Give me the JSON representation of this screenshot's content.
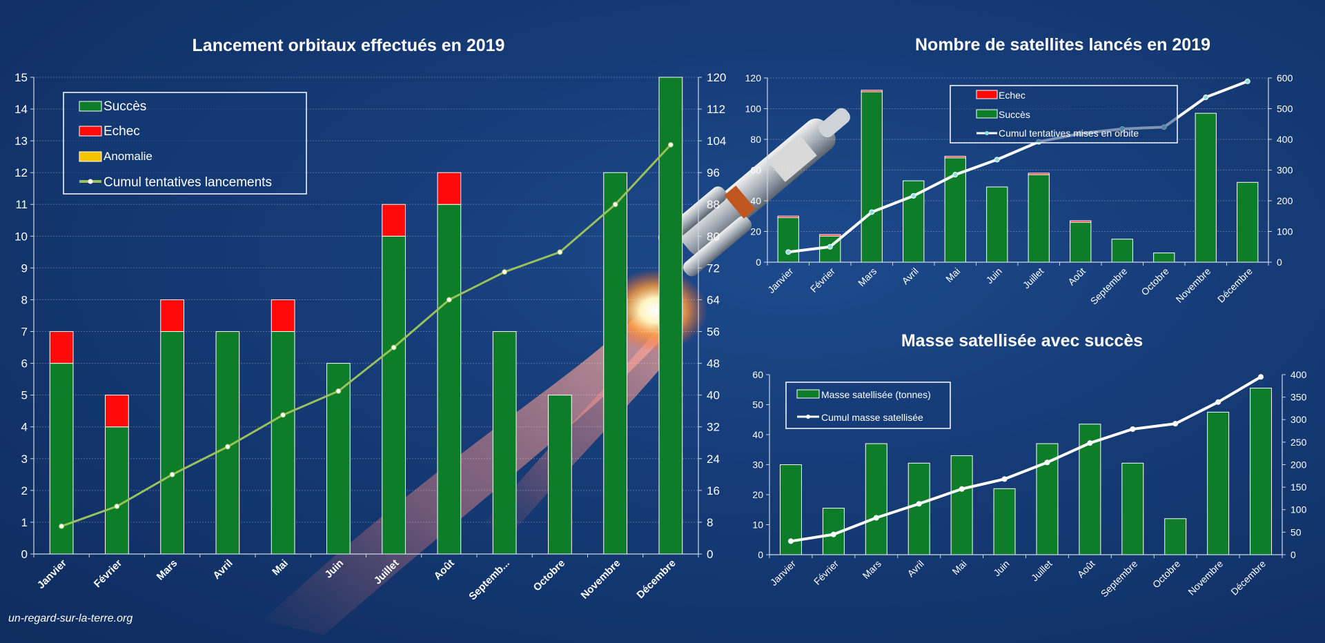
{
  "credit": "un-regard-sur-la-terre.org",
  "chart_data": [
    {
      "type": "bar",
      "title": "Lancement orbitaux effectués en 2019",
      "categories": [
        "Janvier",
        "Février",
        "Mars",
        "Avril",
        "Mai",
        "Juin",
        "Juillet",
        "Août",
        "Septemb...",
        "Octobre",
        "Novembre",
        "Décembre"
      ],
      "ylim": [
        0,
        15
      ],
      "y2lim": [
        0,
        120
      ],
      "yticks": [
        "0",
        "1",
        "2",
        "3",
        "4",
        "5",
        "6",
        "7",
        "8",
        "9",
        "10",
        "11",
        "12",
        "13",
        "14",
        "15"
      ],
      "y2ticks": [
        "0",
        "8",
        "16",
        "24",
        "32",
        "40",
        "48",
        "56",
        "64",
        "72",
        "80",
        "88",
        "96",
        "104",
        "112",
        "120"
      ],
      "series": [
        {
          "name": "Succès",
          "color": "#0e7d2a",
          "values": [
            6,
            4,
            7,
            7,
            7,
            6,
            10,
            11,
            7,
            5,
            12,
            15
          ]
        },
        {
          "name": "Echec",
          "color": "#ff0a0a",
          "values": [
            1,
            1,
            1,
            0,
            1,
            0,
            1,
            1,
            0,
            0,
            0,
            0
          ]
        },
        {
          "name": "Anomalie",
          "color": "#f5c400",
          "values": [
            0,
            0,
            0,
            0,
            0,
            0,
            0,
            0,
            0,
            0,
            0,
            0
          ]
        },
        {
          "name": "Cumul tentatives lancements",
          "color": "#9ac25a",
          "axis": "right",
          "values": [
            7,
            12,
            20,
            27,
            35,
            41,
            52,
            64,
            71,
            76,
            88,
            103
          ]
        }
      ],
      "legend": "top-left",
      "grid": true
    },
    {
      "type": "bar",
      "title": "Nombre de satellites lancés en 2019",
      "categories": [
        "Janvier",
        "Février",
        "Mars",
        "Avril",
        "Mai",
        "Juin",
        "Juillet",
        "Août",
        "Septembre",
        "Octobre",
        "Novembre",
        "Décembre"
      ],
      "ylim": [
        0,
        120
      ],
      "y2lim": [
        0,
        600
      ],
      "yticks": [
        "0",
        "20",
        "40",
        "60",
        "80",
        "100",
        "120"
      ],
      "y2ticks": [
        "0",
        "100",
        "200",
        "300",
        "400",
        "500",
        "600"
      ],
      "series": [
        {
          "name": "Echec",
          "color": "#ff0a0a",
          "values": [
            1,
            1,
            1,
            0,
            1,
            0,
            1,
            1,
            0,
            0,
            0,
            0
          ]
        },
        {
          "name": "Succès",
          "color": "#0e7d2a",
          "values": [
            29,
            17,
            111,
            53,
            68,
            49,
            57,
            26,
            15,
            6,
            97,
            52
          ]
        },
        {
          "name": "Cumul tentatives mises en orbite",
          "color": "#ffffff",
          "axis": "right",
          "values": [
            33,
            50,
            163,
            216,
            285,
            334,
            392,
            419,
            434,
            440,
            537,
            589
          ]
        }
      ],
      "legend": "top-center",
      "grid": true
    },
    {
      "type": "bar",
      "title": "Masse satellisée avec succès",
      "categories": [
        "Janvier",
        "Février",
        "Mars",
        "Avril",
        "Mai",
        "Juin",
        "Juillet",
        "Août",
        "Septembre",
        "Octobre",
        "Novembre",
        "Décembre"
      ],
      "ylim": [
        0,
        60
      ],
      "y2lim": [
        0,
        400
      ],
      "yticks": [
        "0",
        "10",
        "20",
        "30",
        "40",
        "50",
        "60"
      ],
      "y2ticks": [
        "0",
        "50",
        "100",
        "150",
        "200",
        "250",
        "300",
        "350",
        "400"
      ],
      "series": [
        {
          "name": "Masse satellisée (tonnes)",
          "color": "#0e7d2a",
          "values": [
            30,
            15.5,
            37,
            30.5,
            33,
            22,
            37,
            43.5,
            30.5,
            12,
            47.5,
            55.5
          ]
        },
        {
          "name": "Cumul masse satellisée",
          "color": "#ffffff",
          "axis": "right",
          "values": [
            30,
            45,
            82,
            113,
            146,
            168,
            205,
            248,
            279,
            291,
            339,
            395
          ]
        }
      ],
      "legend": "top-left",
      "grid": false
    }
  ]
}
